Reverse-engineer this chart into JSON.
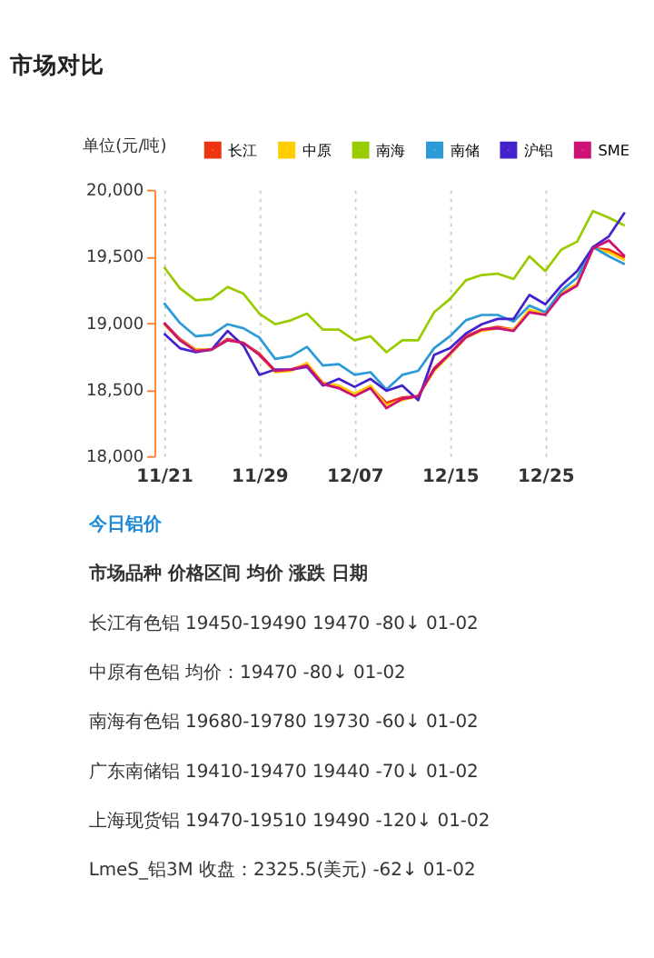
{
  "chart_data": {
    "type": "line",
    "title": "市场对比",
    "ylabel": "单位(元/吨)",
    "categories": [
      "11/21",
      null,
      null,
      null,
      null,
      null,
      "11/29",
      null,
      null,
      null,
      null,
      null,
      "12/07",
      null,
      null,
      null,
      null,
      null,
      "12/15",
      null,
      null,
      null,
      null,
      null,
      "12/25",
      null,
      null,
      null,
      null,
      null
    ],
    "ylim": [
      18000,
      20000
    ],
    "yticks": [
      {
        "value": 18000,
        "label": "18,000"
      },
      {
        "value": 18500,
        "label": "18,500"
      },
      {
        "value": 19000,
        "label": "19,000"
      },
      {
        "value": 19500,
        "label": "19,500"
      },
      {
        "value": 20000,
        "label": "20,000"
      }
    ],
    "grid": "x",
    "legend": "top",
    "marker": "none",
    "line_style": "solid",
    "series": [
      {
        "name": "长江",
        "color": "#ee3311",
        "values": [
          19000,
          18880,
          18800,
          18800,
          18880,
          18850,
          18770,
          18640,
          18650,
          18690,
          18550,
          18520,
          18460,
          18520,
          18400,
          18440,
          18450,
          18660,
          18770,
          18900,
          18950,
          18970,
          18950,
          19090,
          19070,
          19220,
          19290,
          19560,
          19550,
          19490
        ]
      },
      {
        "name": "中原",
        "color": "#ffcc00",
        "values": [
          18990,
          18870,
          18800,
          18800,
          18870,
          18850,
          18760,
          18630,
          18640,
          18700,
          18550,
          18530,
          18470,
          18530,
          18380,
          18420,
          18450,
          18640,
          18760,
          18890,
          18940,
          18960,
          18950,
          19100,
          19070,
          19220,
          19290,
          19560,
          19530,
          19470
        ]
      },
      {
        "name": "南海",
        "color": "#99cc00",
        "values": [
          19420,
          19260,
          19170,
          19180,
          19270,
          19220,
          19070,
          18990,
          19020,
          19070,
          18950,
          18950,
          18870,
          18900,
          18780,
          18870,
          18870,
          19080,
          19180,
          19320,
          19360,
          19370,
          19330,
          19500,
          19390,
          19550,
          19610,
          19840,
          19790,
          19730
        ]
      },
      {
        "name": "南储",
        "color": "#2d9ad8",
        "values": [
          19150,
          19000,
          18900,
          18910,
          18990,
          18960,
          18890,
          18730,
          18750,
          18820,
          18680,
          18690,
          18610,
          18630,
          18500,
          18610,
          18640,
          18810,
          18900,
          19020,
          19060,
          19060,
          19010,
          19130,
          19080,
          19240,
          19340,
          19570,
          19500,
          19440
        ]
      },
      {
        "name": "沪铝",
        "color": "#4422cc",
        "values": [
          18920,
          18810,
          18780,
          18800,
          18940,
          18830,
          18610,
          18650,
          18650,
          18670,
          18530,
          18580,
          18520,
          18580,
          18490,
          18530,
          18420,
          18760,
          18810,
          18920,
          18990,
          19030,
          19030,
          19210,
          19140,
          19280,
          19390,
          19570,
          19650,
          19830
        ]
      },
      {
        "name": "SME",
        "color": "#cc1177",
        "values": [
          19000,
          18870,
          18790,
          18800,
          18870,
          18850,
          18760,
          18640,
          18650,
          18680,
          18540,
          18510,
          18450,
          18510,
          18360,
          18430,
          18450,
          18650,
          18770,
          18890,
          18950,
          18960,
          18940,
          19080,
          19060,
          19210,
          19280,
          19560,
          19620,
          19500
        ]
      }
    ],
    "annotations": [
      "今日铝价",
      "市场品种  价格区间  均价  涨跌  日期",
      "长江有色铝  19450-19490  19470  -80↓  01-02",
      "中原有色铝  均价：19470  -80↓  01-02",
      "南海有色铝  19680-19780  19730  -60↓  01-02",
      "广东南储铝  19410-19470  19440  -70↓  01-02",
      "上海现货铝  19470-19510  19490  -120↓  01-02",
      "LmeS_铝3M  收盘：2325.5(美元)  -62↓  01-02"
    ]
  }
}
